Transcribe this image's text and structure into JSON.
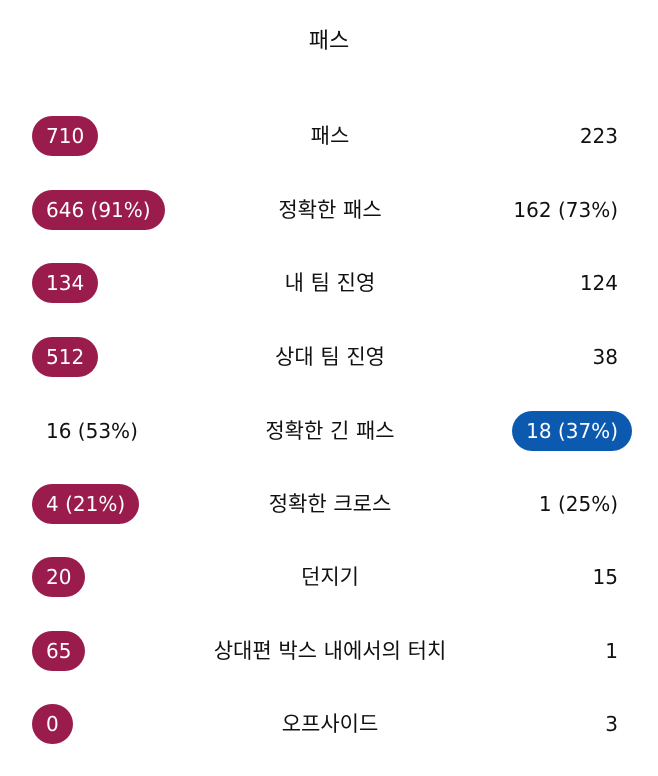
{
  "section": {
    "title": "패스"
  },
  "rows": [
    {
      "label": "패스",
      "left": "710",
      "right": "223",
      "highlight": "left"
    },
    {
      "label": "정확한 패스",
      "left": "646 (91%)",
      "right": "162 (73%)",
      "highlight": "left"
    },
    {
      "label": "내 팀 진영",
      "left": "134",
      "right": "124",
      "highlight": "left"
    },
    {
      "label": "상대 팀 진영",
      "left": "512",
      "right": "38",
      "highlight": "left"
    },
    {
      "label": "정확한 긴 패스",
      "left": "16 (53%)",
      "right": "18 (37%)",
      "highlight": "right"
    },
    {
      "label": "정확한 크로스",
      "left": "4 (21%)",
      "right": "1 (25%)",
      "highlight": "left"
    },
    {
      "label": "던지기",
      "left": "20",
      "right": "15",
      "highlight": "left"
    },
    {
      "label": "상대편 박스 내에서의 터치",
      "left": "65",
      "right": "1",
      "highlight": "left"
    },
    {
      "label": "오프사이드",
      "left": "0",
      "right": "3",
      "highlight": "left"
    }
  ],
  "colors": {
    "left_team": "#9a1c4c",
    "right_team": "#0c5ab0"
  }
}
